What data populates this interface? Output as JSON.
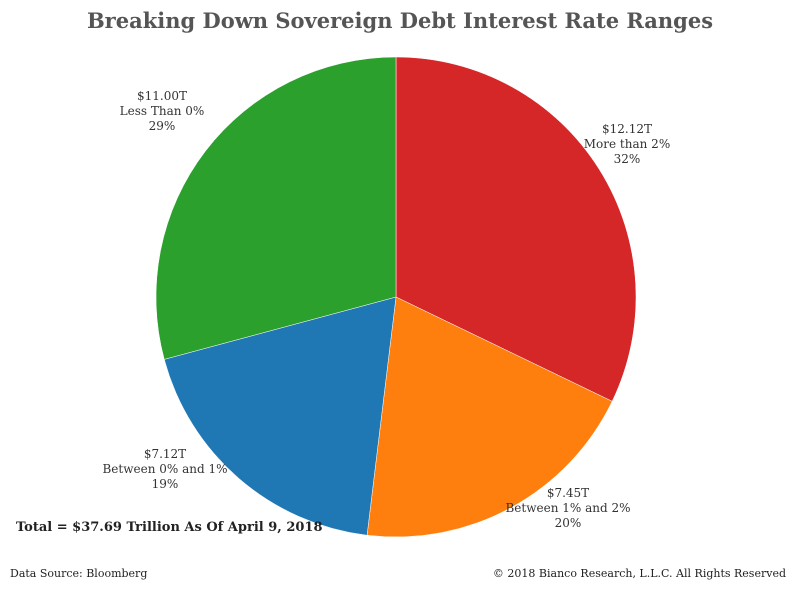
{
  "title": "Breaking Down Sovereign Debt Interest Rate Ranges",
  "total_note": "Total = $37.69 Trillion As Of April 9, 2018",
  "source": "Data Source: Bloomberg",
  "copyright": "© 2018 Bianco Research, L.L.C. All Rights Reserved",
  "chart_data": {
    "type": "pie",
    "title": "Breaking Down Sovereign Debt Interest Rate Ranges",
    "slices": [
      {
        "value_label": "$12.12T",
        "category": "More than 2%",
        "percent_label": "32%",
        "value": 12.12,
        "color": "#d62728"
      },
      {
        "value_label": "$7.45T",
        "category": "Between 1% and 2%",
        "percent_label": "20%",
        "value": 7.45,
        "color": "#ff7f0e"
      },
      {
        "value_label": "$7.12T",
        "category": "Between 0% and 1%",
        "percent_label": "19%",
        "value": 7.12,
        "color": "#1f77b4"
      },
      {
        "value_label": "$11.00T",
        "category": "Less Than 0%",
        "percent_label": "29%",
        "value": 11.0,
        "color": "#2ca02c"
      }
    ],
    "start": "12 o'clock",
    "direction": "clockwise"
  }
}
